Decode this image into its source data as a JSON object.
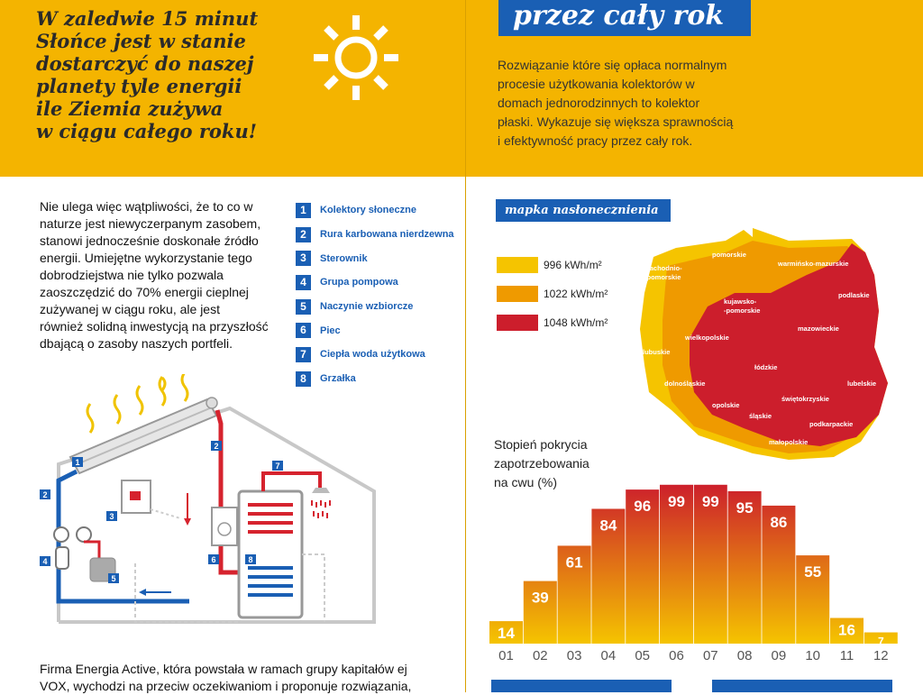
{
  "banner": {
    "slogan_lines": [
      "W zaledwie 15 minut",
      "Słońce jest w stanie",
      "dostarczyć do naszej",
      "planety tyle energii",
      "ile Ziemia zużywa",
      "w ciągu całego roku!"
    ],
    "title": "przez cały rok",
    "intro_lines": [
      "Rozwiązanie które się opłaca normalnym",
      "procesie użytkowania kolektorów w",
      "domach jednorodzinnych  to kolektor",
      "płaski. Wykazuje się większa sprawnością",
      "i efektywność pracy przez cały rok."
    ]
  },
  "left_text_lines": [
    "Nie ulega więc wątpliwości, że to co w",
    "naturze jest niewyczerpanym zasobem,",
    "stanowi jednocześnie doskonałe źródło",
    "energii. Umiejętne wykorzystanie tego",
    "dobrodziejstwa nie tylko pozwala",
    "zaoszczędzić do 70% energii cieplnej",
    "zużywanej w ciągu roku, ale jest",
    "również solidną inwestycją na przyszłość",
    "dbającą o zasoby naszych portfeli."
  ],
  "legend": [
    {
      "num": "1",
      "label": "Kolektory słoneczne"
    },
    {
      "num": "2",
      "label": "Rura karbowana nierdzewna"
    },
    {
      "num": "3",
      "label": "Sterownik"
    },
    {
      "num": "4",
      "label": "Grupa pompowa"
    },
    {
      "num": "5",
      "label": "Naczynie wzbiorcze"
    },
    {
      "num": "6",
      "label": "Piec"
    },
    {
      "num": "7",
      "label": "Ciepła woda użytkowa"
    },
    {
      "num": "8",
      "label": "Grzałka"
    }
  ],
  "diagram_tags": [
    "1",
    "2",
    "2",
    "3",
    "4",
    "5",
    "6",
    "7",
    "8"
  ],
  "map": {
    "title": "mapka nasłonecznienia",
    "scale": [
      {
        "label": "996 kWh/m²",
        "color": "#f5c400"
      },
      {
        "label": "1022 kWh/m²",
        "color": "#ef9a00"
      },
      {
        "label": "1048 kWh/m²",
        "color": "#cc1e2c"
      }
    ],
    "regions": [
      "zachodnio-",
      "-pomorskie",
      "pomorskie",
      "warmińsko-mazurskie",
      "podlaskie",
      "kujawsko-",
      "-pomorskie",
      "mazowieckie",
      "lubuskie",
      "wielkopolskie",
      "łódzkie",
      "lubelskie",
      "dolnośląskie",
      "opolskie",
      "świętokrzyskie",
      "śląskie",
      "podkarpackie",
      "małopolskie"
    ]
  },
  "chart_data": {
    "type": "bar",
    "title_lines": [
      "Stopień pokrycia",
      "zapotrzebowania",
      "na cwu (%)"
    ],
    "categories": [
      "01",
      "02",
      "03",
      "04",
      "05",
      "06",
      "07",
      "08",
      "09",
      "10",
      "11",
      "12"
    ],
    "values": [
      14,
      39,
      61,
      84,
      96,
      99,
      99,
      95,
      86,
      55,
      16,
      7
    ],
    "ylim": [
      0,
      100
    ],
    "grid": false,
    "colors": {
      "low": "#f5c400",
      "high": "#cc1e2c"
    }
  },
  "bottom_text_lines": [
    "Firma Energia Active, która powstała w ramach grupy kapitałów ej",
    "VOX,  wychodzi na przeciw oczekiwaniom i proponuje rozwiązania,"
  ],
  "colors": {
    "banner": "#f4b400",
    "accent_blue": "#1a5fb4",
    "pipe_red": "#d6232e",
    "pipe_blue": "#1a5fb4"
  }
}
